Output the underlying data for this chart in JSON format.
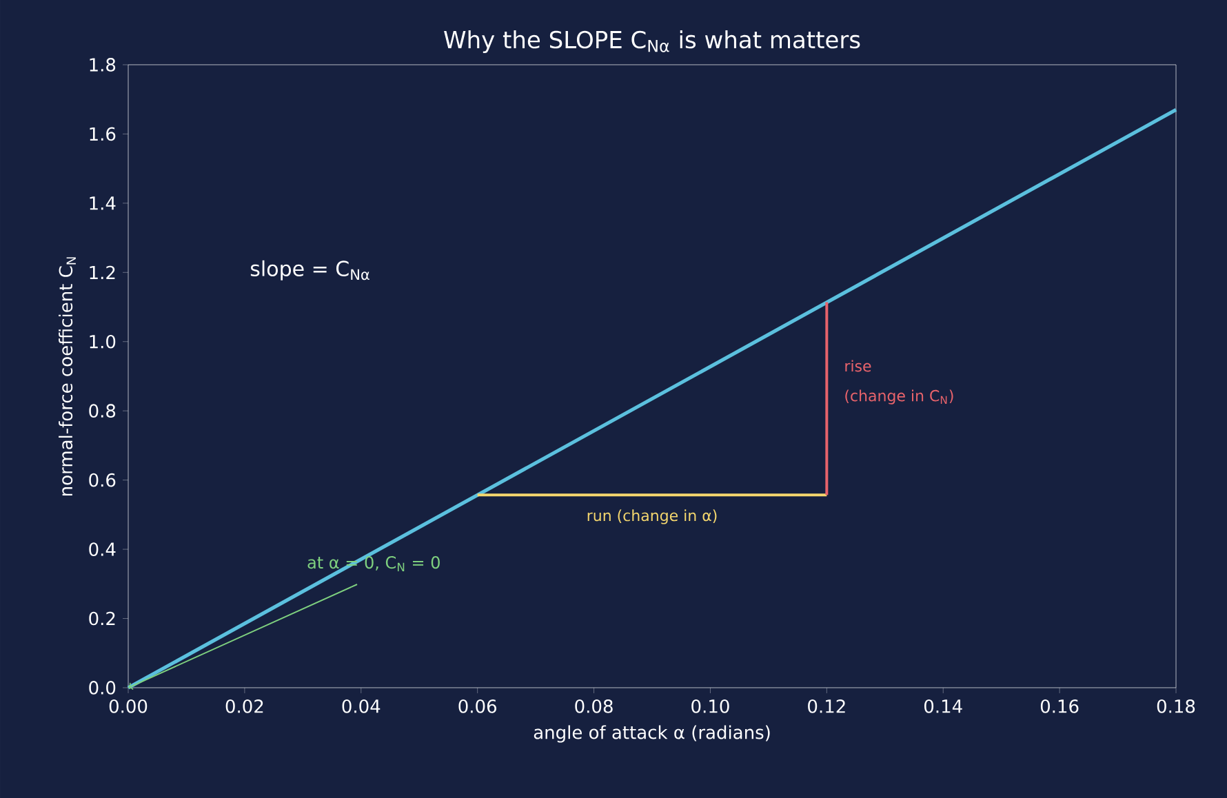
{
  "chart_data": {
    "type": "line",
    "title": "Why the SLOPE C$_{Nα}$ is what matters",
    "xlabel": "angle of attack α (radians)",
    "ylabel": "normal-force coefficient C$_{N}$",
    "series": [
      {
        "color": "#5bc0de",
        "x": [
          0,
          0.18
        ],
        "values": [
          0,
          1.67
        ]
      },
      {
        "color": "#f5d76e",
        "x": [
          0.06,
          0.12
        ],
        "values": [
          0.557,
          0.557
        ]
      },
      {
        "color": "#e8636b",
        "x": [
          0.12,
          0.12
        ],
        "values": [
          0.557,
          1.114
        ]
      }
    ],
    "xlim": [
      0,
      0.18
    ],
    "ylim": [
      0,
      1.8
    ],
    "xticks": [
      {
        "value": 0,
        "label": "0.00"
      },
      {
        "value": 0.02,
        "label": "0.02"
      },
      {
        "value": 0.04,
        "label": "0.04"
      },
      {
        "value": 0.06,
        "label": "0.06"
      },
      {
        "value": 0.08,
        "label": "0.08"
      },
      {
        "value": 0.1,
        "label": "0.10"
      },
      {
        "value": 0.12,
        "label": "0.12"
      },
      {
        "value": 0.14,
        "label": "0.14"
      },
      {
        "value": 0.16,
        "label": "0.16"
      },
      {
        "value": 0.18,
        "label": "0.18"
      }
    ],
    "yticks": [
      {
        "value": 0,
        "label": "0.0"
      },
      {
        "value": 0.2,
        "label": "0.2"
      },
      {
        "value": 0.4,
        "label": "0.4"
      },
      {
        "value": 0.6,
        "label": "0.6"
      },
      {
        "value": 0.8,
        "label": "0.8"
      },
      {
        "value": 1.0,
        "label": "1.0"
      },
      {
        "value": 1.2,
        "label": "1.2"
      },
      {
        "value": 1.4,
        "label": "1.4"
      },
      {
        "value": 1.6,
        "label": "1.6"
      },
      {
        "value": 1.8,
        "label": "1.8"
      }
    ],
    "annotations": [
      "slope = C$_{Nα}$",
      {
        "text": "rise",
        "x": 0.12,
        "y": 0.93
      },
      {
        "text": "run (change in α)",
        "x": 0.09,
        "y": 0.557
      },
      {
        "text": "at α = 0, C$_{N}$ = 0",
        "x": 0,
        "y": 0
      },
      {
        "text": "(change in C$_{N}$)",
        "x": 0.12,
        "y": 0.84
      }
    ],
    "grid": false
  }
}
